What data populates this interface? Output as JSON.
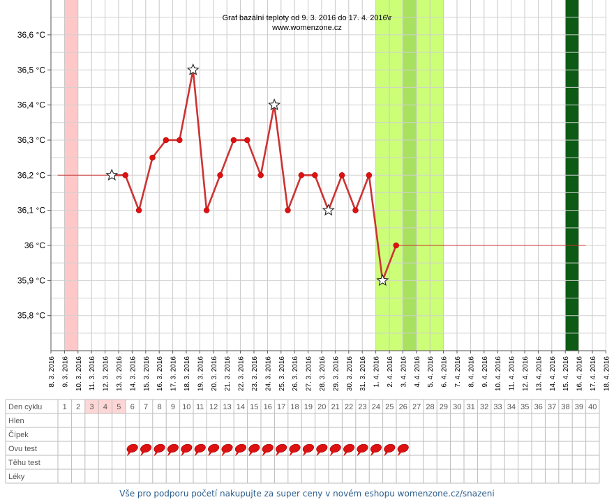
{
  "chart_data": {
    "type": "line",
    "title": "Graf bazální teploty od 9. 3. 2016 do 17. 4. 2016\\r",
    "subtitle": "www.womenzone.cz",
    "ylim": [
      35.7,
      36.7
    ],
    "y_tick_values": [
      36.6,
      36.5,
      36.4,
      36.3,
      36.2,
      36.1,
      36.0,
      35.9,
      35.8
    ],
    "y_tick_labels": [
      "36,6 °C",
      "36,5 °C",
      "36,4 °C",
      "36,3 °C",
      "36,2 °C",
      "36,1 °C",
      "36 °C",
      "35,9 °C",
      "35,8 °C"
    ],
    "x_labels": [
      "8. 3. 2016",
      "9. 3. 2016",
      "10. 3. 2016",
      "11. 3. 2016",
      "12. 3. 2016",
      "13. 3. 2016",
      "14. 3. 2016",
      "15. 3. 2016",
      "16. 3. 2016",
      "17. 3. 2016",
      "18. 3. 2016",
      "19. 3. 2016",
      "20. 3. 2016",
      "21. 3. 2016",
      "22. 3. 2016",
      "23. 3. 2016",
      "24. 3. 2016",
      "25. 3. 2016",
      "26. 3. 2016",
      "27. 3. 2016",
      "28. 3. 2016",
      "29. 3. 2016",
      "30. 3. 2016",
      "31. 3. 2016",
      "1. 4. 2016",
      "2. 4. 2016",
      "3. 4. 2016",
      "4. 4. 2016",
      "5. 4. 2016",
      "6. 4. 2016",
      "7. 4. 2016",
      "8. 4. 2016",
      "9. 4. 2016",
      "10. 4. 2016",
      "11. 4. 2016",
      "12. 4. 2016",
      "13. 4. 2016",
      "14. 4. 2016",
      "15. 4. 2016",
      "16. 4. 2016",
      "17. 4. 2016",
      "18. 4. 2016"
    ],
    "series": [
      {
        "days": [
          6,
          7,
          8,
          9,
          10,
          11,
          12,
          13,
          14,
          15,
          16,
          17,
          18,
          19,
          20,
          21,
          22,
          23,
          24,
          25,
          26
        ],
        "values": [
          36.2,
          36.1,
          36.25,
          36.3,
          36.3,
          36.5,
          36.1,
          36.2,
          36.3,
          36.3,
          36.2,
          36.4,
          36.1,
          36.2,
          36.2,
          36.1,
          36.2,
          36.1,
          36.2,
          35.9,
          36.0
        ],
        "color": "#cc3333"
      }
    ],
    "star_markers": [
      {
        "day": 5,
        "value": 36.2
      },
      {
        "day": 11,
        "value": 36.5
      },
      {
        "day": 17,
        "value": 36.4
      },
      {
        "day": 21,
        "value": 36.1
      },
      {
        "day": 25,
        "value": 35.9
      }
    ],
    "baseline_before": {
      "from_day": 1,
      "to_day": 5,
      "value": 36.2
    },
    "baseline_after": {
      "from_day": 26,
      "to_day": 40,
      "value": 36.0
    },
    "bands": [
      {
        "from_day": 1,
        "to_day": 2,
        "color": "#ffc8c8"
      },
      {
        "from_day": 24,
        "to_day": 29,
        "color": "#ccff77"
      },
      {
        "from_day": 26,
        "to_day": 27,
        "color": "#a8e060"
      },
      {
        "from_day": 38,
        "to_day": 39,
        "color": "#0c5a14"
      }
    ],
    "grid": true
  },
  "table": {
    "row_labels": [
      "Den cyklu",
      "Hlen",
      "Čípek",
      "Ovu test",
      "Těhu test",
      "Léky"
    ],
    "cycle_days": [
      "1",
      "2",
      "3",
      "4",
      "5",
      "6",
      "7",
      "8",
      "9",
      "10",
      "11",
      "12",
      "13",
      "14",
      "15",
      "16",
      "17",
      "18",
      "19",
      "20",
      "21",
      "22",
      "23",
      "24",
      "25",
      "26",
      "27",
      "28",
      "29",
      "30",
      "31",
      "32",
      "33",
      "34",
      "35",
      "36",
      "37",
      "38",
      "39",
      "40"
    ],
    "menstruation_days": [
      3,
      4,
      5
    ],
    "ovu_test_days": [
      6,
      7,
      8,
      9,
      10,
      11,
      12,
      13,
      14,
      15,
      16,
      17,
      18,
      19,
      20,
      21,
      22,
      23,
      24,
      25,
      26
    ],
    "ovu_test_icon": "red-drop-icon",
    "ovu_color": "#dd1111"
  },
  "footer": {
    "text": "Vše pro podporu početí nakupujte za super ceny v novém eshopu womenzone.cz/snazeni"
  }
}
